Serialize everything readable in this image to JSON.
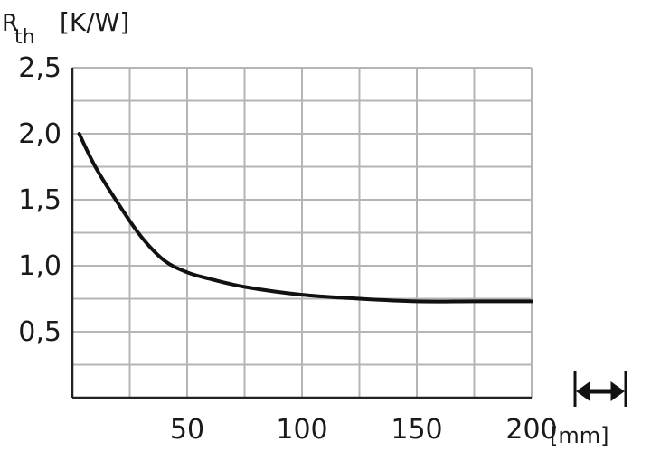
{
  "chart_data": {
    "type": "line",
    "title": "",
    "ylabel": {
      "symbol": "R",
      "subscript": "th",
      "unit": "[K/W]"
    },
    "xlabel": {
      "unit": "[mm]"
    },
    "xlim": [
      0,
      200
    ],
    "ylim": [
      0,
      2.5
    ],
    "x_ticks": [
      50,
      100,
      150,
      200
    ],
    "x_tick_labels": [
      "50",
      "100",
      "150",
      "200"
    ],
    "y_ticks": [
      0.5,
      1.0,
      1.5,
      2.0,
      2.5
    ],
    "y_tick_labels": [
      "0,5",
      "1,0",
      "1,5",
      "2,0",
      "2,5"
    ],
    "grid": true,
    "x_grid_step": 25,
    "y_grid_step": 0.25,
    "series": [
      {
        "x": [
          3,
          10,
          20,
          30,
          40,
          50,
          60,
          75,
          100,
          125,
          150,
          175,
          200
        ],
        "y": [
          2.0,
          1.75,
          1.47,
          1.22,
          1.04,
          0.95,
          0.9,
          0.84,
          0.78,
          0.75,
          0.73,
          0.73,
          0.73
        ]
      }
    ],
    "colors": {
      "line": "#111111",
      "grid": "#b5b5b5",
      "axis": "#222222",
      "text": "#1a1a1a"
    },
    "icons": {
      "dimension": "double-arrow-icon"
    }
  }
}
